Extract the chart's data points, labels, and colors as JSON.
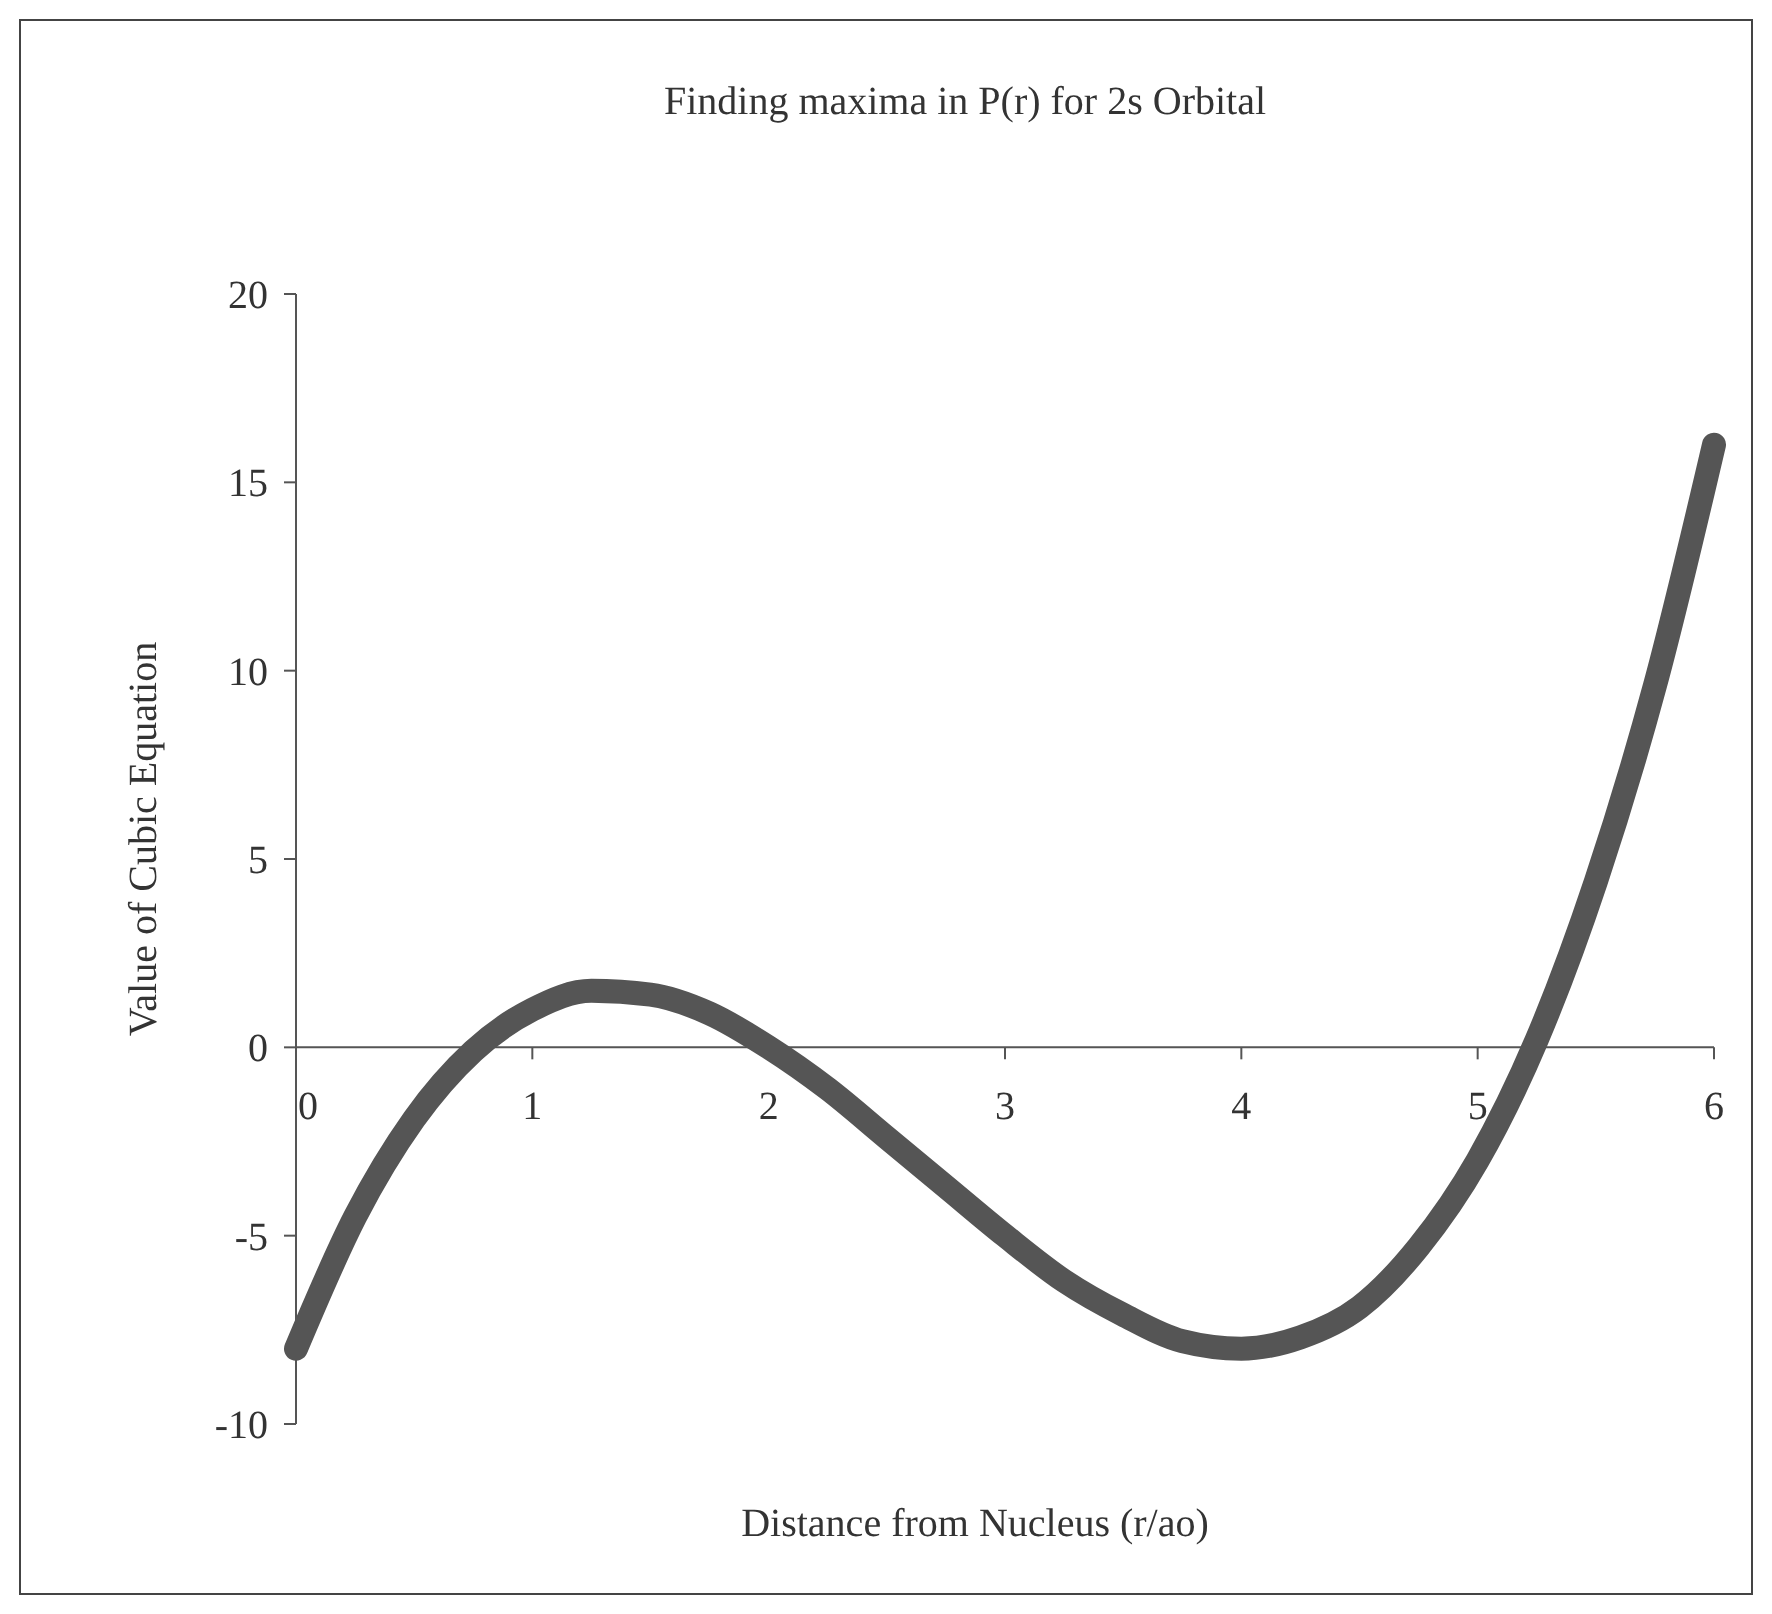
{
  "chart_data": {
    "type": "line",
    "title": "Finding maxima in P(r) for 2s Orbital",
    "xlabel": "Distance from Nucleus (r/ao)",
    "ylabel": "Value of Cubic Equation",
    "x": [
      0,
      0.25,
      0.5,
      0.75,
      1,
      1.25,
      1.5,
      1.75,
      2,
      2.25,
      2.5,
      2.75,
      3,
      3.25,
      3.5,
      3.75,
      4,
      4.25,
      4.5,
      4.75,
      5,
      5.25,
      5.5,
      5.75,
      6
    ],
    "series": [
      {
        "color": "#555555",
        "values": [
          -8,
          -4.5,
          -1.9,
          -0.1,
          1,
          1.5,
          1.4,
          0.9,
          0,
          -1.1,
          -2.4,
          -3.7,
          -5,
          -6.2,
          -7.1,
          -7.8,
          -8,
          -7.7,
          -6.9,
          -5.3,
          -3,
          0.2,
          4.4,
          9.6,
          16
        ]
      }
    ],
    "xlim": [
      0,
      6
    ],
    "xticks": [
      0,
      1,
      2,
      3,
      4,
      5,
      6
    ],
    "ylim": [
      -10,
      20
    ],
    "yticks": [
      -10,
      -5,
      0,
      5,
      10,
      15,
      20
    ]
  }
}
